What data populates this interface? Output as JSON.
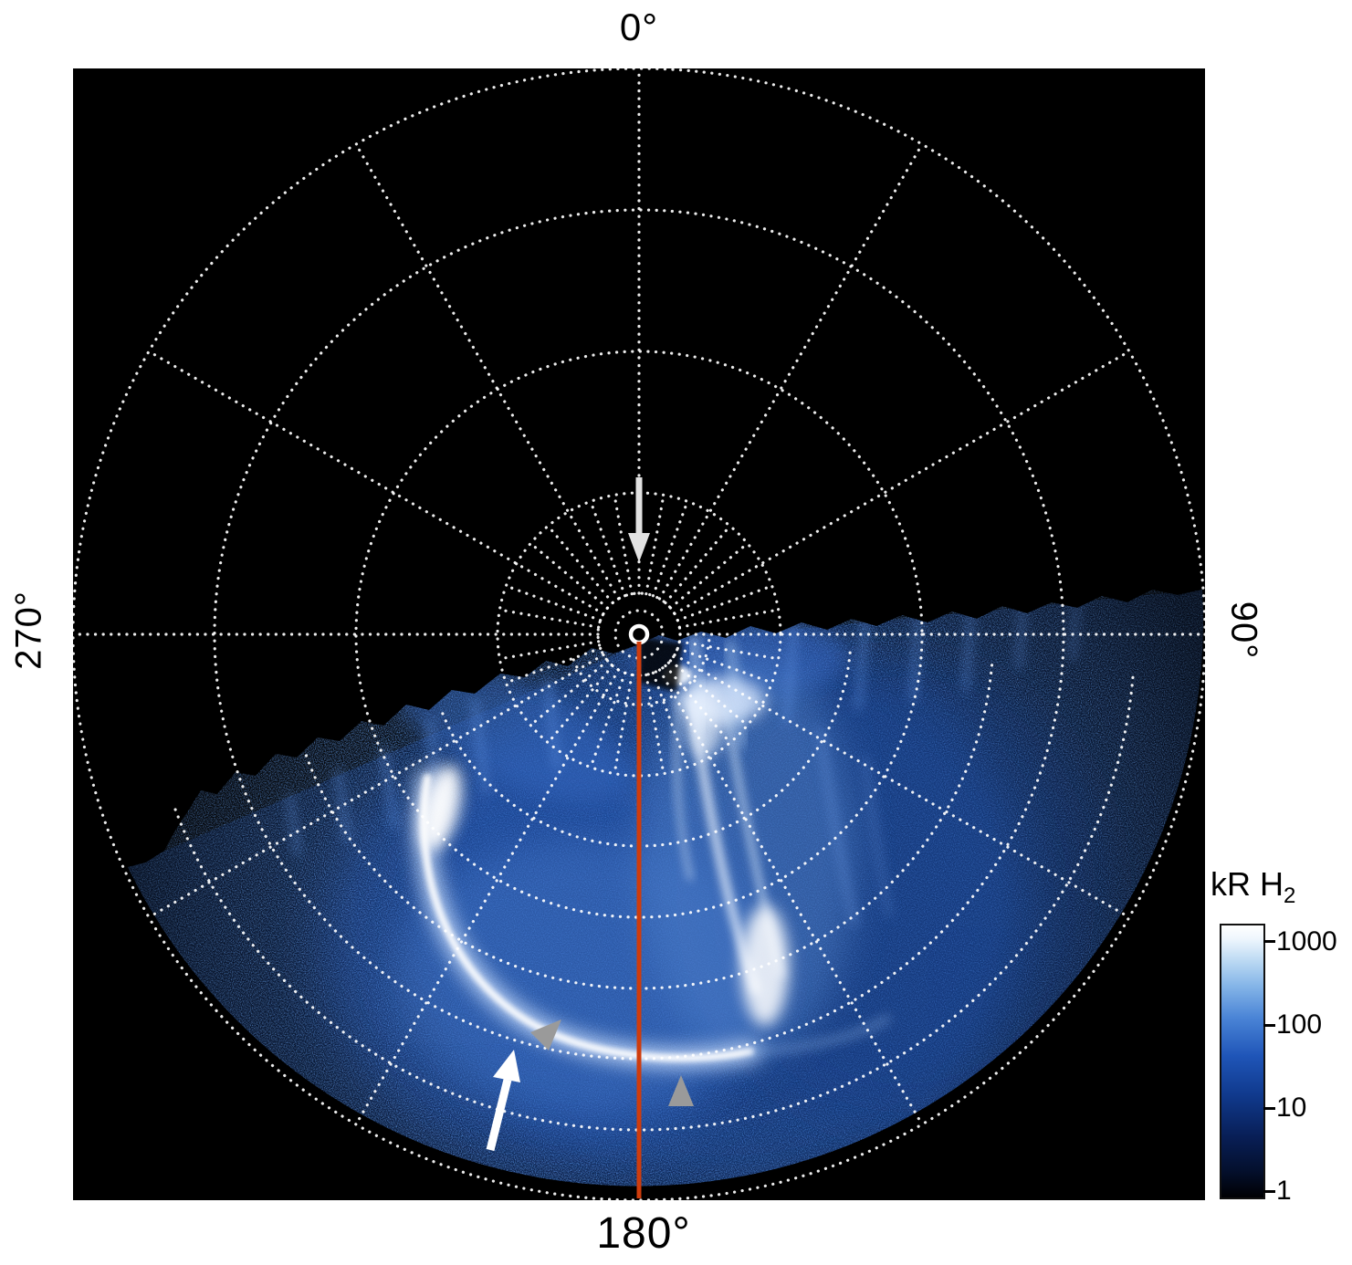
{
  "figure": {
    "angle_labels": {
      "top": "0°",
      "right": "90°",
      "bottom": "180°",
      "left": "270°"
    },
    "colorbar": {
      "title_main": "kR H",
      "title_sub": "2",
      "ticks": [
        "1000",
        "100",
        "10",
        "1"
      ]
    },
    "colors": {
      "background": "#ffffff",
      "plot_bg": "#000000",
      "grid": "#ffffff",
      "meridian_line": "#cf3c0c",
      "arrow_white": "#ffffff",
      "arrow_pole": "#e2e2e2",
      "arrow_gray": "#9a9a9a",
      "aurora_bright": "#ffffff",
      "aurora_mid": "#2f63c4",
      "aurora_dim": "#071a3f"
    }
  },
  "chart_data": {
    "type": "heatmap",
    "projection": "polar",
    "title": "",
    "angular_ticks_deg": [
      0,
      90,
      180,
      270
    ],
    "angular_tick_labels": [
      "0°",
      "90°",
      "180°",
      "270°"
    ],
    "grid": "dotted white polar grid: concentric circles at equal colatitude steps (extra circles over the emission sector), radial spokes every 30 deg with a fine 10-deg fan near the pole",
    "colorbar": {
      "label": "kR H2",
      "scale": "log",
      "ticks": [
        1,
        10,
        100,
        1000
      ],
      "range": [
        1,
        1000
      ],
      "colormap": "black -> dark blue -> blue -> light blue -> white"
    },
    "features": [
      {
        "name": "auroral-emission-sector",
        "azimuth_extent_deg": [
          85,
          250
        ],
        "description": "speckled blue H2 auroral emission filling the sector below a ragged terminator edge that slants from upper right to lower left through the pole"
      },
      {
        "name": "main-auroral-arc",
        "description": "bright white crescent arc left of the 180° meridian, curving from the terminator (~135° azimuth) down toward the 180° meridian near the outer rings"
      },
      {
        "name": "bright-filaments",
        "description": "several near-radial bright white filaments just right of the 180° meridian, brightest blob near their equatorward ends"
      },
      {
        "name": "meridian-180-line",
        "color": "#cf3c0c",
        "description": "solid red-orange straight line drawn from the pole along the 180° meridian to the outer circle"
      },
      {
        "name": "pole-arrow",
        "description": "light arrow along the 0° meridian pointing inward at the pole marker"
      },
      {
        "name": "arc-arrow",
        "description": "white arrow in the lower left pointing up at the main auroral arc"
      },
      {
        "name": "gray-arrowheads",
        "count": 2,
        "description": "two gray arrowheads flagging features near the end of the main arc and just right of the 180° meridian"
      },
      {
        "name": "pole-marker",
        "description": "small solid white circle at the pole"
      }
    ]
  }
}
